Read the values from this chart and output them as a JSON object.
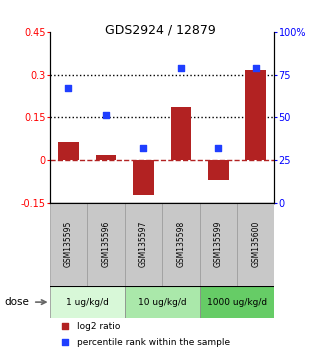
{
  "title": "GDS2924 / 12879",
  "samples": [
    "GSM135595",
    "GSM135596",
    "GSM135597",
    "GSM135598",
    "GSM135599",
    "GSM135600"
  ],
  "log2_ratio": [
    0.062,
    0.018,
    -0.125,
    0.185,
    -0.072,
    0.315
  ],
  "percentile_rank": [
    67,
    51,
    32,
    79,
    32,
    79
  ],
  "ylim_left": [
    -0.15,
    0.45
  ],
  "ylim_right": [
    0,
    100
  ],
  "yticks_left": [
    -0.15,
    0,
    0.15,
    0.3,
    0.45
  ],
  "yticks_right": [
    0,
    25,
    50,
    75,
    100
  ],
  "ytick_labels_left": [
    "-0.15",
    "0",
    "0.15",
    "0.3",
    "0.45"
  ],
  "ytick_labels_right": [
    "0",
    "25",
    "50",
    "75",
    "100%"
  ],
  "hlines_dotted": [
    0.15,
    0.3
  ],
  "hline_dashed": 0,
  "bar_color": "#b22222",
  "dot_color": "#1f3eff",
  "dose_colors": [
    "#d8f8d8",
    "#aae8aa",
    "#66cc66"
  ],
  "dose_groups": [
    {
      "label": "1 ug/kg/d",
      "indices": [
        0,
        1
      ]
    },
    {
      "label": "10 ug/kg/d",
      "indices": [
        2,
        3
      ]
    },
    {
      "label": "1000 ug/kg/d",
      "indices": [
        4,
        5
      ]
    }
  ],
  "dose_label": "dose",
  "legend_log2": "log2 ratio",
  "legend_pct": "percentile rank within the sample",
  "sample_box_color": "#c8c8c8",
  "title_fontsize": 9,
  "tick_fontsize": 7,
  "label_fontsize": 6.5,
  "legend_fontsize": 6.5
}
